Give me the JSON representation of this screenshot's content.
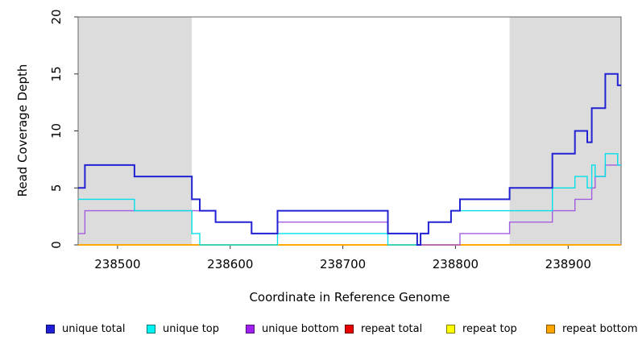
{
  "chart_data": {
    "type": "line",
    "subtype": "step-after",
    "title": "",
    "xlabel": "Coordinate in Reference Genome",
    "ylabel": "Read Coverage Depth",
    "xlim": [
      238465,
      238947
    ],
    "ylim": [
      0,
      20
    ],
    "x_ticks": [
      238500,
      238600,
      238700,
      238800,
      238900
    ],
    "y_ticks": [
      0,
      5,
      10,
      15,
      20
    ],
    "grid": false,
    "legend_position": "bottom",
    "shade_color": "#DCDCDC",
    "box_color": "#666666",
    "tick_color": "#333333",
    "shaded_regions": [
      [
        238465,
        238566
      ],
      [
        238848,
        238947
      ]
    ],
    "draw_order": [
      3,
      4,
      5,
      2,
      1,
      0
    ],
    "series": [
      {
        "name": "unique total",
        "color": "#2222D4",
        "legend_color": "#1F1FD6",
        "width": 2,
        "points": [
          [
            238465,
            5
          ],
          [
            238471,
            7
          ],
          [
            238515,
            6
          ],
          [
            238566,
            4
          ],
          [
            238573,
            3
          ],
          [
            238587,
            2
          ],
          [
            238619,
            1
          ],
          [
            238642,
            3
          ],
          [
            238740,
            1
          ],
          [
            238766,
            0
          ],
          [
            238769,
            1
          ],
          [
            238776,
            2
          ],
          [
            238796,
            3
          ],
          [
            238804,
            4
          ],
          [
            238848,
            5
          ],
          [
            238886,
            8
          ],
          [
            238906,
            10
          ],
          [
            238917,
            9
          ],
          [
            238921,
            12
          ],
          [
            238933,
            15
          ],
          [
            238944,
            14
          ]
        ]
      },
      {
        "name": "unique top",
        "color": "#00E0E8",
        "legend_color": "#00F2F2",
        "width": 1.4,
        "points": [
          [
            238465,
            4
          ],
          [
            238515,
            3
          ],
          [
            238566,
            1
          ],
          [
            238573,
            0
          ],
          [
            238642,
            1
          ],
          [
            238740,
            0
          ],
          [
            238769,
            1
          ],
          [
            238776,
            2
          ],
          [
            238796,
            3
          ],
          [
            238886,
            5
          ],
          [
            238906,
            6
          ],
          [
            238917,
            5
          ],
          [
            238921,
            7
          ],
          [
            238924,
            6
          ],
          [
            238933,
            8
          ],
          [
            238944,
            7
          ]
        ]
      },
      {
        "name": "unique bottom",
        "color": "#A45CE0",
        "legend_color": "#A020F0",
        "width": 1.4,
        "points": [
          [
            238465,
            1
          ],
          [
            238471,
            3
          ],
          [
            238587,
            2
          ],
          [
            238619,
            1
          ],
          [
            238642,
            2
          ],
          [
            238740,
            1
          ],
          [
            238766,
            0
          ],
          [
            238804,
            1
          ],
          [
            238848,
            2
          ],
          [
            238886,
            3
          ],
          [
            238906,
            4
          ],
          [
            238921,
            5
          ],
          [
            238924,
            6
          ],
          [
            238933,
            7
          ]
        ]
      },
      {
        "name": "repeat total",
        "color": "#E60000",
        "legend_color": "#E60000",
        "width": 1.4,
        "points": [
          [
            238465,
            0
          ]
        ]
      },
      {
        "name": "repeat top",
        "color": "#FFFF00",
        "legend_color": "#FFFF00",
        "width": 1.4,
        "points": [
          [
            238465,
            0
          ]
        ]
      },
      {
        "name": "repeat bottom",
        "color": "#FFA500",
        "legend_color": "#FFA500",
        "width": 1.8,
        "points": [
          [
            238465,
            0
          ]
        ]
      }
    ]
  }
}
